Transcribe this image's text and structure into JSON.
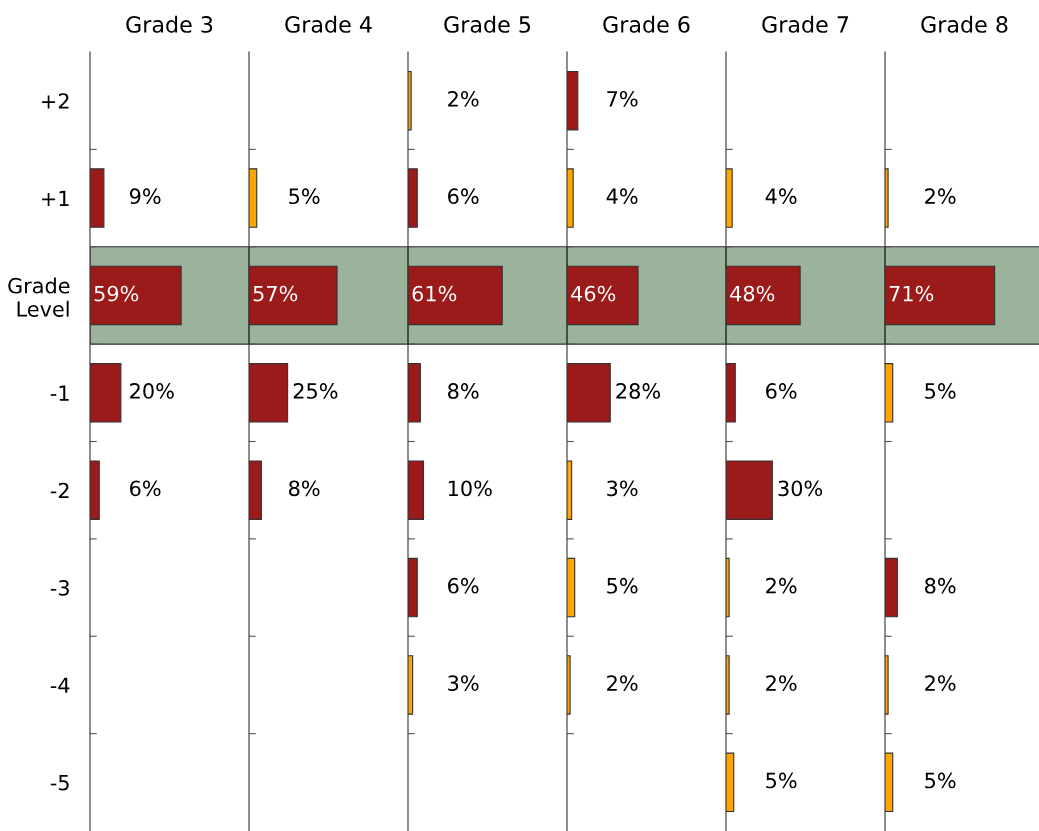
{
  "chart_data": [
    {
      "type": "bar",
      "orientation": "horizontal",
      "title": "Grade 3",
      "categories": [
        "+2",
        "+1",
        "Grade\nLevel",
        "-1",
        "-2",
        "-3",
        "-4",
        "-5"
      ],
      "values": [
        null,
        9,
        59,
        20,
        6,
        null,
        null,
        null
      ],
      "value_labels": [
        null,
        "9%",
        "59%",
        "20%",
        "6%",
        null,
        null,
        null
      ],
      "colors": [
        "#9b1b1b",
        "#9b1b1b",
        "#9b1b1b",
        "#9b1b1b",
        "#9b1b1b",
        "#9b1b1b",
        "#9b1b1b",
        "#9b1b1b"
      ],
      "bands": [
        {
          "axis": "y",
          "from": "Grade\nLevel",
          "to": "Grade\nLevel",
          "color": "#9ab39a"
        }
      ],
      "tick_labels": "y",
      "grid": false,
      "legend": false
    },
    {
      "type": "bar",
      "orientation": "horizontal",
      "title": "Grade 4",
      "categories": [
        "+2",
        "+1",
        "Grade\nLevel",
        "-1",
        "-2",
        "-3",
        "-4",
        "-5"
      ],
      "values": [
        null,
        5,
        57,
        25,
        8,
        null,
        null,
        null
      ],
      "value_labels": [
        null,
        "5%",
        "57%",
        "25%",
        "8%",
        null,
        null,
        null
      ],
      "colors": [
        "#9b1b1b",
        "#ffa500",
        "#9b1b1b",
        "#9b1b1b",
        "#9b1b1b",
        "#9b1b1b",
        "#9b1b1b",
        "#9b1b1b"
      ],
      "bands": [
        {
          "axis": "y",
          "from": "Grade\nLevel",
          "to": "Grade\nLevel",
          "color": "#9ab39a"
        }
      ],
      "tick_labels": false,
      "grid": false,
      "legend": false
    },
    {
      "type": "bar",
      "orientation": "horizontal",
      "title": "Grade 5",
      "categories": [
        "+2",
        "+1",
        "Grade\nLevel",
        "-1",
        "-2",
        "-3",
        "-4",
        "-5"
      ],
      "values": [
        2,
        6,
        61,
        8,
        10,
        6,
        3,
        null
      ],
      "value_labels": [
        "2%",
        "6%",
        "61%",
        "8%",
        "10%",
        "6%",
        "3%",
        null
      ],
      "colors": [
        "#ffa500",
        "#9b1b1b",
        "#9b1b1b",
        "#9b1b1b",
        "#9b1b1b",
        "#9b1b1b",
        "#ffa500",
        "#9b1b1b"
      ],
      "bands": [
        {
          "axis": "y",
          "from": "Grade\nLevel",
          "to": "Grade\nLevel",
          "color": "#9ab39a"
        }
      ],
      "tick_labels": false,
      "grid": false,
      "legend": false
    },
    {
      "type": "bar",
      "orientation": "horizontal",
      "title": "Grade 6",
      "categories": [
        "+2",
        "+1",
        "Grade\nLevel",
        "-1",
        "-2",
        "-3",
        "-4",
        "-5"
      ],
      "values": [
        7,
        4,
        46,
        28,
        3,
        5,
        2,
        null
      ],
      "value_labels": [
        "7%",
        "4%",
        "46%",
        "28%",
        "3%",
        "5%",
        "2%",
        null
      ],
      "colors": [
        "#9b1b1b",
        "#ffa500",
        "#9b1b1b",
        "#9b1b1b",
        "#ffa500",
        "#ffa500",
        "#ffa500",
        "#9b1b1b"
      ],
      "bands": [
        {
          "axis": "y",
          "from": "Grade\nLevel",
          "to": "Grade\nLevel",
          "color": "#9ab39a"
        }
      ],
      "tick_labels": false,
      "grid": false,
      "legend": false
    },
    {
      "type": "bar",
      "orientation": "horizontal",
      "title": "Grade 7",
      "categories": [
        "+2",
        "+1",
        "Grade\nLevel",
        "-1",
        "-2",
        "-3",
        "-4",
        "-5"
      ],
      "values": [
        null,
        4,
        48,
        6,
        30,
        2,
        2,
        5
      ],
      "value_labels": [
        null,
        "4%",
        "48%",
        "6%",
        "30%",
        "2%",
        "2%",
        "5%"
      ],
      "colors": [
        "#9b1b1b",
        "#ffa500",
        "#9b1b1b",
        "#9b1b1b",
        "#9b1b1b",
        "#ffa500",
        "#ffa500",
        "#ffa500"
      ],
      "bands": [
        {
          "axis": "y",
          "from": "Grade\nLevel",
          "to": "Grade\nLevel",
          "color": "#9ab39a"
        }
      ],
      "tick_labels": false,
      "grid": false,
      "legend": false
    },
    {
      "type": "bar",
      "orientation": "horizontal",
      "title": "Grade 8",
      "categories": [
        "+2",
        "+1",
        "Grade\nLevel",
        "-1",
        "-2",
        "-3",
        "-4",
        "-5"
      ],
      "values": [
        null,
        2,
        71,
        5,
        null,
        8,
        2,
        5
      ],
      "value_labels": [
        null,
        "2%",
        "71%",
        "5%",
        null,
        "8%",
        "2%",
        "5%"
      ],
      "colors": [
        "#9b1b1b",
        "#ffa500",
        "#9b1b1b",
        "#ffa500",
        "#9b1b1b",
        "#9b1b1b",
        "#ffa500",
        "#ffa500"
      ],
      "bands": [
        {
          "axis": "y",
          "from": "Grade\nLevel",
          "to": "Grade\nLevel",
          "color": "#9ab39a"
        }
      ],
      "tick_labels": false,
      "grid": false,
      "legend": false
    }
  ]
}
